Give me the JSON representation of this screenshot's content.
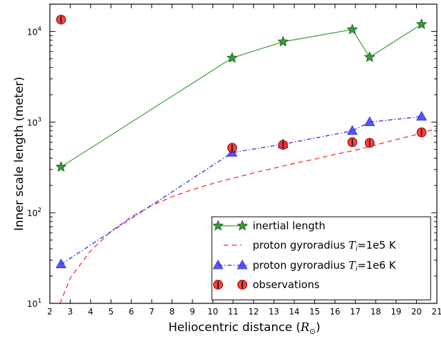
{
  "chart_data": {
    "type": "scatter",
    "xlabel": "Heliocentric distance (R☉)",
    "xlabel_main": "Heliocentric distance (",
    "xlabel_symbol": "R",
    "xlabel_subscript": "⊙",
    "xlabel_close": ")",
    "ylabel": "Inner scale length (meter)",
    "xlim": [
      2,
      21
    ],
    "ylim": [
      10,
      20000
    ],
    "yscale": "log",
    "x_ticks": [
      2,
      3,
      4,
      5,
      6,
      7,
      8,
      9,
      10,
      11,
      12,
      13,
      14,
      15,
      16,
      17,
      18,
      19,
      20,
      21
    ],
    "y_ticks": [
      {
        "value": 10,
        "base": "10",
        "exp": "1"
      },
      {
        "value": 100,
        "base": "10",
        "exp": "2"
      },
      {
        "value": 1000,
        "base": "10",
        "exp": "3"
      },
      {
        "value": 10000,
        "base": "10",
        "exp": "4"
      }
    ],
    "legend_position": "lower-right",
    "series": [
      {
        "name": "inertial length",
        "marker": "star",
        "line": "solid",
        "color": "#3a9a3a",
        "x": [
          2.55,
          10.95,
          13.45,
          16.85,
          17.7,
          20.25
        ],
        "y": [
          320,
          5100,
          7700,
          10500,
          5200,
          12000
        ]
      },
      {
        "name": "proton gyroradius Ti=1e5 K",
        "legend_prefix": "proton gyroradius ",
        "legend_symbol": "T",
        "legend_subscript": "i",
        "legend_suffix": "=1e5 K",
        "marker": "none",
        "line": "dashed",
        "color": "#ff2a2a",
        "x": [
          2.5,
          3,
          4,
          5,
          6,
          7,
          8,
          9,
          10,
          11,
          12,
          13,
          14,
          15,
          16,
          17,
          18,
          19,
          20,
          21
        ],
        "y": [
          10,
          19,
          38,
          62,
          90,
          120,
          150,
          180,
          210,
          240,
          275,
          310,
          350,
          390,
          440,
          490,
          560,
          640,
          730,
          850
        ]
      },
      {
        "name": "proton gyroradius Ti=1e6 K",
        "legend_prefix": "proton gyroradius ",
        "legend_symbol": "T",
        "legend_subscript": "i",
        "legend_suffix": "=1e6 K",
        "marker": "triangle",
        "line": "dashdot",
        "color": "#2a2aff",
        "x": [
          2.55,
          10.95,
          13.45,
          16.85,
          17.7,
          20.25
        ],
        "y": [
          27,
          460,
          570,
          800,
          1000,
          1150
        ]
      },
      {
        "name": "observations",
        "marker": "circle",
        "line": "none",
        "color": "#ff2a2a",
        "x": [
          2.55,
          10.95,
          13.45,
          16.85,
          17.7,
          20.25
        ],
        "y": [
          13500,
          520,
          560,
          600,
          590,
          770
        ]
      }
    ]
  }
}
